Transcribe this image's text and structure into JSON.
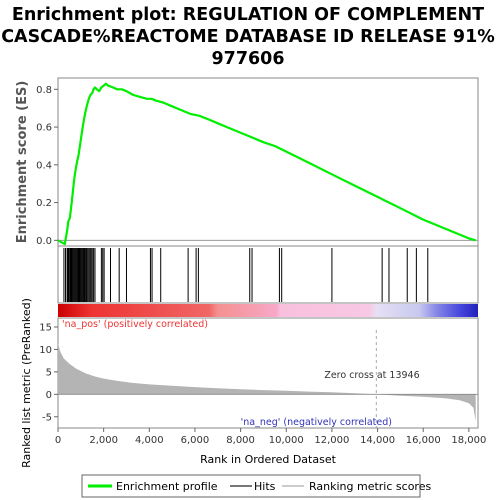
{
  "chart_data": {
    "type": "line",
    "title_lines": [
      "Enrichment plot: REGULATION OF COMPLEMENT",
      "CASCADE%REACTOME DATABASE ID RELEASE 91%",
      "977606"
    ],
    "xlabel": "Rank in Ordered Dataset",
    "ylabel_top": "Enrichment score (ES)",
    "ylabel_bottom": "Ranked list metric (PreRanked)",
    "x_range": [
      0,
      18400
    ],
    "x_ticks": [
      0,
      2000,
      4000,
      6000,
      8000,
      10000,
      12000,
      14000,
      16000,
      18000
    ],
    "x_tick_labels": [
      "0",
      "2,000",
      "4,000",
      "6,000",
      "8,000",
      "10,000",
      "12,000",
      "14,000",
      "16,000",
      "18,000"
    ],
    "es_range": [
      -0.03,
      0.86
    ],
    "es_ticks": [
      0.0,
      0.2,
      0.4,
      0.6,
      0.8
    ],
    "es_tick_labels": [
      "0.0",
      "0.2",
      "0.4",
      "0.6",
      "0.8"
    ],
    "metric_range": [
      -7.5,
      17
    ],
    "metric_ticks": [
      -5,
      0,
      5,
      10,
      15
    ],
    "metric_tick_labels": [
      "-5",
      "0",
      "5",
      "10",
      "15"
    ],
    "series": [
      {
        "name": "Enrichment profile",
        "color": "#00ee00",
        "x": [
          0,
          150,
          300,
          400,
          450,
          520,
          600,
          660,
          720,
          780,
          840,
          900,
          960,
          1020,
          1080,
          1140,
          1200,
          1280,
          1350,
          1420,
          1500,
          1560,
          1620,
          1700,
          1800,
          1900,
          2000,
          2100,
          2200,
          2400,
          2600,
          2800,
          3000,
          3300,
          3600,
          3900,
          4100,
          4300,
          4600,
          5000,
          5400,
          5800,
          6200,
          6600,
          7000,
          7400,
          7800,
          8200,
          8600,
          9000,
          9500,
          10000,
          11000,
          12000,
          13000,
          14000,
          15000,
          16000,
          17000,
          18000,
          18300
        ],
        "y": [
          0.0,
          -0.01,
          -0.02,
          0.05,
          0.1,
          0.12,
          0.2,
          0.27,
          0.33,
          0.38,
          0.42,
          0.45,
          0.5,
          0.55,
          0.6,
          0.64,
          0.68,
          0.72,
          0.75,
          0.77,
          0.78,
          0.8,
          0.81,
          0.8,
          0.79,
          0.81,
          0.82,
          0.83,
          0.82,
          0.81,
          0.8,
          0.8,
          0.79,
          0.77,
          0.76,
          0.75,
          0.75,
          0.74,
          0.73,
          0.71,
          0.69,
          0.67,
          0.66,
          0.64,
          0.62,
          0.6,
          0.58,
          0.56,
          0.54,
          0.52,
          0.5,
          0.47,
          0.41,
          0.35,
          0.29,
          0.23,
          0.17,
          0.11,
          0.06,
          0.01,
          0.0
        ]
      }
    ],
    "hits": [
      260,
      330,
      400,
      440,
      480,
      530,
      570,
      610,
      650,
      690,
      730,
      760,
      800,
      840,
      880,
      920,
      960,
      1000,
      1040,
      1080,
      1120,
      1160,
      1200,
      1250,
      1300,
      1350,
      1400,
      1450,
      1500,
      1560,
      1620,
      1900,
      1960,
      2020,
      2300,
      2680,
      3000,
      4050,
      4120,
      4500,
      5700,
      6050,
      6150,
      8400,
      8500,
      9700,
      9800,
      12000,
      14200,
      14500,
      15300,
      15700,
      16200
    ],
    "metric_curve": {
      "x": [
        0,
        100,
        250,
        500,
        800,
        1200,
        1600,
        2000,
        2600,
        3200,
        4000,
        5000,
        6000,
        7000,
        8000,
        9000,
        10000,
        11000,
        12000,
        13000,
        13946,
        15000,
        16000,
        17000,
        17600,
        18000,
        18200,
        18300
      ],
      "y": [
        11.5,
        9.5,
        8.0,
        6.8,
        5.7,
        4.7,
        4.0,
        3.5,
        3.0,
        2.6,
        2.2,
        1.9,
        1.6,
        1.35,
        1.15,
        0.95,
        0.8,
        0.6,
        0.45,
        0.25,
        0.0,
        -0.3,
        -0.55,
        -0.9,
        -1.3,
        -2.0,
        -3.0,
        -6.0
      ]
    },
    "zero_cross_x": 13946,
    "annotations": {
      "pos_label": "'na_pos' (positively correlated)",
      "neg_label": "'na_neg' (negatively correlated)",
      "zero_cross": "Zero cross at 13946"
    },
    "legend": {
      "placement": "bottom",
      "items": [
        "Enrichment profile",
        "Hits",
        "Ranking metric scores"
      ]
    },
    "colors": {
      "pos": "#ee3333",
      "neg": "#4444dd",
      "metric_fill": "#b4b4b4",
      "zero_line": "#aaaaaa"
    }
  }
}
